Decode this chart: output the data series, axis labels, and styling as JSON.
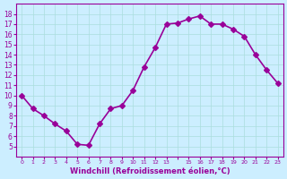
{
  "x": [
    0,
    1,
    2,
    3,
    4,
    5,
    6,
    7,
    8,
    9,
    10,
    11,
    12,
    13,
    14,
    15,
    16,
    17,
    18,
    19,
    20,
    21,
    22,
    23
  ],
  "y": [
    10,
    8.7,
    8.0,
    7.2,
    6.5,
    5.2,
    5.1,
    7.2,
    8.7,
    9.0,
    10.5,
    12.8,
    14.7,
    17.0,
    17.1,
    17.5,
    17.8,
    17.0,
    17.0,
    16.5,
    15.8,
    14.0,
    12.5,
    11.2
  ],
  "line_color": "#990099",
  "marker": "D",
  "marker_size": 3,
  "bg_color": "#cceeff",
  "grid_color": "#aadddd",
  "xlabel": "Windchill (Refroidissement éolien,°C)",
  "xlabel_color": "#990099",
  "tick_color": "#990099",
  "ylim": [
    4,
    19
  ],
  "xlim": [
    -0.5,
    23.5
  ],
  "yticks": [
    5,
    6,
    7,
    8,
    9,
    10,
    11,
    12,
    13,
    14,
    15,
    16,
    17,
    18
  ],
  "xticks": [
    0,
    1,
    2,
    3,
    4,
    5,
    6,
    7,
    8,
    9,
    10,
    11,
    12,
    13,
    14,
    15,
    16,
    17,
    18,
    19,
    20,
    21,
    22,
    23
  ],
  "xtick_labels": [
    "0",
    "1",
    "2",
    "3",
    "4",
    "5",
    "6",
    "7",
    "8",
    "9",
    "10",
    "11",
    "12",
    "13",
    "",
    "15",
    "16",
    "17",
    "18",
    "19",
    "20",
    "21",
    "22",
    "23"
  ],
  "line_width": 1.2
}
